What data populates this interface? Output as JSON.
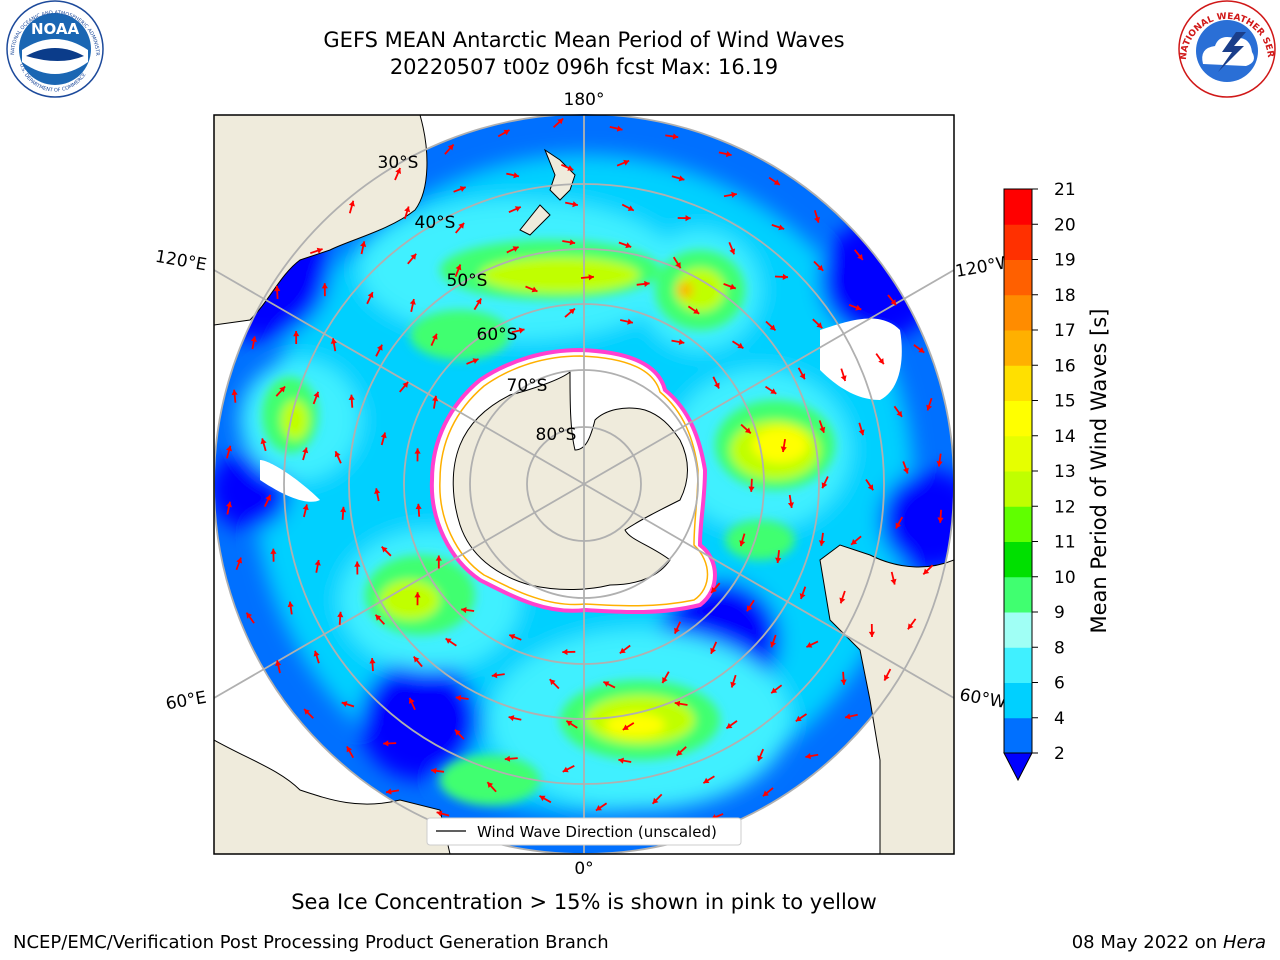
{
  "title": {
    "line1": "GEFS MEAN Antarctic Mean Period of Wind Waves",
    "line2": "20220507 t00z 096h fcst   Max: 16.19"
  },
  "map": {
    "projection": "south-polar-stereographic",
    "meridian_labels": {
      "top": "180°",
      "bottom": "0°",
      "left_upper": "120°E",
      "left_lower": "60°E",
      "right_upper": "120°W",
      "right_lower": "60°W"
    },
    "latitude_labels": [
      "30°S",
      "40°S",
      "50°S",
      "60°S",
      "70°S",
      "80°S"
    ],
    "legend_label": "Wind Wave Direction (unscaled)",
    "land_color": "#efebdc",
    "arrow_color": "#ff0000"
  },
  "colorbar": {
    "label": "Mean Period of Wind Waves [s]",
    "ticks": [
      "2",
      "4",
      "6",
      "8",
      "9",
      "10",
      "11",
      "12",
      "13",
      "14",
      "15",
      "16",
      "17",
      "18",
      "19",
      "20",
      "21"
    ],
    "colors": [
      "#0070ff",
      "#00d0ff",
      "#40f0ff",
      "#a0fff5",
      "#40ff70",
      "#00e000",
      "#60ff00",
      "#c0ff00",
      "#e6ff00",
      "#ffff00",
      "#ffe000",
      "#ffb000",
      "#ff8c00",
      "#ff6000",
      "#ff3000",
      "#ff0000"
    ],
    "under_color": "#0000ff"
  },
  "footer": {
    "ice_note": "Sea Ice Concentration > 15% is shown in pink to yellow",
    "credit_left": "NCEP/EMC/Verification Post Processing Product Generation Branch",
    "credit_right_date": "08 May 2022 on ",
    "credit_right_host": "Hera"
  },
  "logos": {
    "noaa": {
      "center_text": "NOAA",
      "ring_top": "NATIONAL OCEANIC AND ATMOSPHERIC ADMINISTRATION",
      "ring_bottom": "U.S. DEPARTMENT OF COMMERCE"
    },
    "nws": {
      "ring_text": "NATIONAL WEATHER SERVICE"
    }
  }
}
